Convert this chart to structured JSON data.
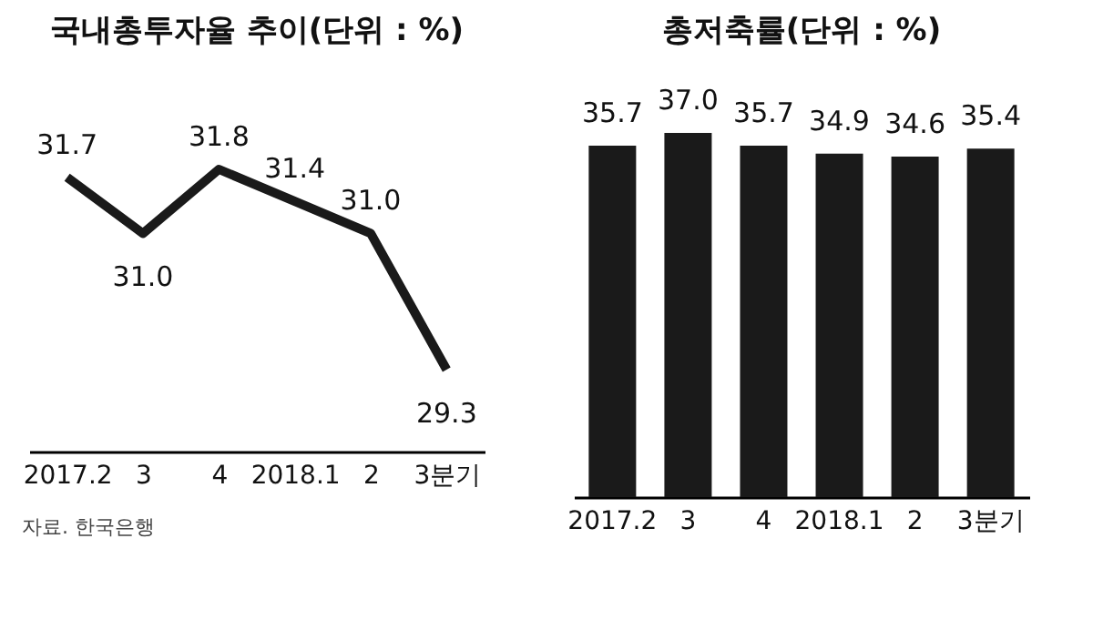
{
  "chart_data": [
    {
      "type": "line",
      "title": "국내총투자율 추이(단위 : %)",
      "categories": [
        "2017.2",
        "3",
        "4",
        "2018.1",
        "2",
        "3분기"
      ],
      "series": [
        {
          "color": "#1a1a1a",
          "values": [
            31.7,
            31.0,
            31.8,
            31.4,
            31.0,
            29.3
          ],
          "value_labels": [
            "31.7",
            "31.0",
            "31.8",
            "31.4",
            "31.0",
            "29.3"
          ]
        }
      ],
      "marker": "none",
      "line_style": "solid",
      "tick_labels": "x",
      "annotations": [
        "자료. 한국은행"
      ]
    },
    {
      "type": "bar",
      "title": "총저축률(단위 : %)",
      "categories": [
        "2017.2",
        "3",
        "4",
        "2018.1",
        "2",
        "3분기"
      ],
      "series": [
        {
          "color": "#1a1a1a",
          "values": [
            35.7,
            37.0,
            35.7,
            34.9,
            34.6,
            35.4
          ],
          "value_labels": [
            "35.7",
            "37.0",
            "35.7",
            "34.9",
            "34.6",
            "35.4"
          ]
        }
      ],
      "tick_labels": "x"
    }
  ]
}
